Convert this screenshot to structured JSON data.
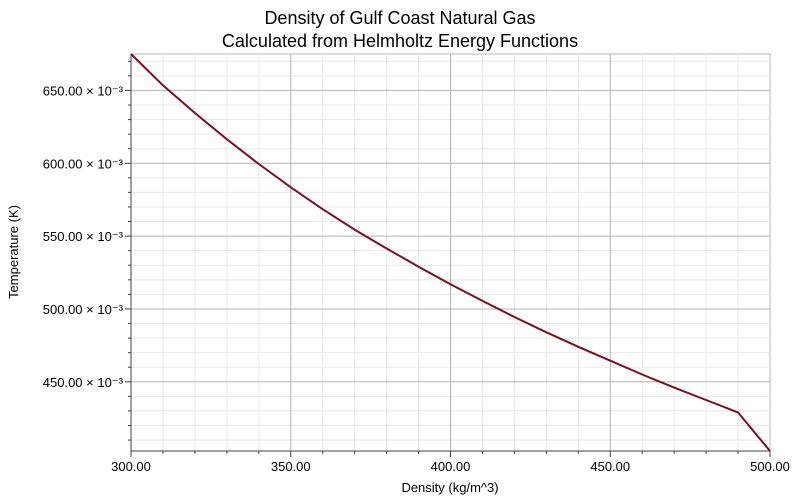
{
  "chart_data": {
    "type": "line",
    "title": "Density of Gulf Coast Natural Gas",
    "subtitle": "Calculated from Helmholtz Energy Functions",
    "xlabel": "Density (kg/m^3)",
    "ylabel": "Temperature (K)",
    "xlim": [
      300,
      500
    ],
    "ylim": [
      0.4025,
      0.675
    ],
    "grid": true,
    "x_ticks": [
      300,
      350,
      400,
      450,
      500
    ],
    "x_tick_labels": [
      "300.00",
      "350.00",
      "400.00",
      "450.00",
      "500.00"
    ],
    "y_ticks": [
      0.45,
      0.5,
      0.55,
      0.6,
      0.65
    ],
    "y_tick_labels": [
      "450.00",
      "500.00",
      "550.00",
      "600.00",
      "650.00"
    ],
    "y_tick_exponent": "× 10⁻³",
    "line_color": "#7a1020",
    "series": [
      {
        "x": [
          300,
          310,
          320,
          330,
          340,
          350,
          360,
          370,
          380,
          390,
          400,
          410,
          420,
          430,
          440,
          450,
          460,
          470,
          480,
          490,
          500
        ],
        "y": [
          0.675,
          0.6535,
          0.6345,
          0.6165,
          0.5995,
          0.5835,
          0.5685,
          0.5545,
          0.5415,
          0.529,
          0.517,
          0.5055,
          0.4945,
          0.484,
          0.474,
          0.4645,
          0.455,
          0.446,
          0.4375,
          0.429,
          0.4025
        ]
      }
    ]
  }
}
